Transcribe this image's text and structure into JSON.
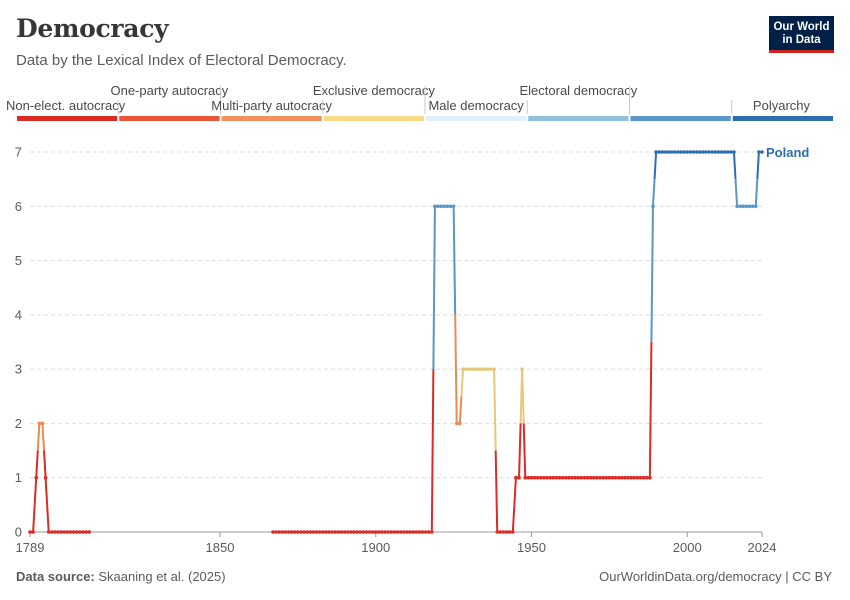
{
  "title": "Democracy",
  "subtitle": "Data by the Lexical Index of Electoral Democracy.",
  "logo": {
    "line1": "Our World",
    "line2": "in Data"
  },
  "footer": {
    "source_label": "Data source:",
    "source_text": "Skaaning et al. (2025)",
    "url": "OurWorldinData.org/democracy | CC BY"
  },
  "chart_data": {
    "type": "line",
    "title": "Democracy",
    "subtitle": "Data by the Lexical Index of Electoral Democracy.",
    "ylim": [
      0,
      7
    ],
    "xlim": [
      1789,
      2024
    ],
    "y_ticks": [
      0,
      1,
      2,
      3,
      4,
      5,
      6,
      7
    ],
    "x_ticks": [
      1789,
      1850,
      1900,
      1950,
      2000,
      2024
    ],
    "grid": true,
    "legend": {
      "placement": "top",
      "type": "color-scale",
      "categories": [
        {
          "label": "Non-elect. autocracy",
          "color": "#dc2a24"
        },
        {
          "label": "One-party autocracy",
          "color": "#ea5538"
        },
        {
          "label": "Multi-party autocracy",
          "color": "#f2915c"
        },
        {
          "label": "Exclusive democracy",
          "color": "#f8da87"
        },
        {
          "label": "Male democracy",
          "color": "#dff0fa"
        },
        {
          "label": "Electoral democracy",
          "color": "#8fc1db"
        },
        {
          "label": "Polyarchy",
          "color": "#5897c9"
        },
        {
          "label": "",
          "color": "#2e6eaf"
        }
      ]
    },
    "series": [
      {
        "name": "Poland",
        "points": [
          [
            1789,
            0
          ],
          [
            1790,
            0
          ],
          [
            1791,
            1
          ],
          [
            1792,
            2
          ],
          [
            1793,
            2
          ],
          [
            1794,
            1
          ],
          [
            1795,
            0
          ],
          [
            1796,
            0
          ],
          [
            1797,
            0
          ],
          [
            1798,
            0
          ],
          [
            1799,
            0
          ],
          [
            1800,
            0
          ],
          [
            1801,
            0
          ],
          [
            1802,
            0
          ],
          [
            1803,
            0
          ],
          [
            1804,
            0
          ],
          [
            1805,
            0
          ],
          [
            1806,
            0
          ],
          [
            1807,
            0
          ],
          [
            1808,
            0
          ],
          [
            1867,
            0
          ],
          [
            1868,
            0
          ],
          [
            1869,
            0
          ],
          [
            1870,
            0
          ],
          [
            1871,
            0
          ],
          [
            1872,
            0
          ],
          [
            1873,
            0
          ],
          [
            1874,
            0
          ],
          [
            1875,
            0
          ],
          [
            1876,
            0
          ],
          [
            1877,
            0
          ],
          [
            1878,
            0
          ],
          [
            1879,
            0
          ],
          [
            1880,
            0
          ],
          [
            1881,
            0
          ],
          [
            1882,
            0
          ],
          [
            1883,
            0
          ],
          [
            1884,
            0
          ],
          [
            1885,
            0
          ],
          [
            1886,
            0
          ],
          [
            1887,
            0
          ],
          [
            1888,
            0
          ],
          [
            1889,
            0
          ],
          [
            1890,
            0
          ],
          [
            1891,
            0
          ],
          [
            1892,
            0
          ],
          [
            1893,
            0
          ],
          [
            1894,
            0
          ],
          [
            1895,
            0
          ],
          [
            1896,
            0
          ],
          [
            1897,
            0
          ],
          [
            1898,
            0
          ],
          [
            1899,
            0
          ],
          [
            1900,
            0
          ],
          [
            1901,
            0
          ],
          [
            1902,
            0
          ],
          [
            1903,
            0
          ],
          [
            1904,
            0
          ],
          [
            1905,
            0
          ],
          [
            1906,
            0
          ],
          [
            1907,
            0
          ],
          [
            1908,
            0
          ],
          [
            1909,
            0
          ],
          [
            1910,
            0
          ],
          [
            1911,
            0
          ],
          [
            1912,
            0
          ],
          [
            1913,
            0
          ],
          [
            1914,
            0
          ],
          [
            1915,
            0
          ],
          [
            1916,
            0
          ],
          [
            1917,
            0
          ],
          [
            1918,
            0
          ],
          [
            1919,
            6
          ],
          [
            1920,
            6
          ],
          [
            1921,
            6
          ],
          [
            1922,
            6
          ],
          [
            1923,
            6
          ],
          [
            1924,
            6
          ],
          [
            1925,
            6
          ],
          [
            1926,
            2
          ],
          [
            1927,
            2
          ],
          [
            1928,
            3
          ],
          [
            1929,
            3
          ],
          [
            1930,
            3
          ],
          [
            1931,
            3
          ],
          [
            1932,
            3
          ],
          [
            1933,
            3
          ],
          [
            1934,
            3
          ],
          [
            1935,
            3
          ],
          [
            1936,
            3
          ],
          [
            1937,
            3
          ],
          [
            1938,
            3
          ],
          [
            1939,
            0
          ],
          [
            1940,
            0
          ],
          [
            1941,
            0
          ],
          [
            1942,
            0
          ],
          [
            1943,
            0
          ],
          [
            1944,
            0
          ],
          [
            1945,
            1
          ],
          [
            1946,
            1
          ],
          [
            1947,
            3
          ],
          [
            1948,
            1
          ],
          [
            1949,
            1
          ],
          [
            1950,
            1
          ],
          [
            1951,
            1
          ],
          [
            1952,
            1
          ],
          [
            1953,
            1
          ],
          [
            1954,
            1
          ],
          [
            1955,
            1
          ],
          [
            1956,
            1
          ],
          [
            1957,
            1
          ],
          [
            1958,
            1
          ],
          [
            1959,
            1
          ],
          [
            1960,
            1
          ],
          [
            1961,
            1
          ],
          [
            1962,
            1
          ],
          [
            1963,
            1
          ],
          [
            1964,
            1
          ],
          [
            1965,
            1
          ],
          [
            1966,
            1
          ],
          [
            1967,
            1
          ],
          [
            1968,
            1
          ],
          [
            1969,
            1
          ],
          [
            1970,
            1
          ],
          [
            1971,
            1
          ],
          [
            1972,
            1
          ],
          [
            1973,
            1
          ],
          [
            1974,
            1
          ],
          [
            1975,
            1
          ],
          [
            1976,
            1
          ],
          [
            1977,
            1
          ],
          [
            1978,
            1
          ],
          [
            1979,
            1
          ],
          [
            1980,
            1
          ],
          [
            1981,
            1
          ],
          [
            1982,
            1
          ],
          [
            1983,
            1
          ],
          [
            1984,
            1
          ],
          [
            1985,
            1
          ],
          [
            1986,
            1
          ],
          [
            1987,
            1
          ],
          [
            1988,
            1
          ],
          [
            1989,
            6
          ],
          [
            1990,
            7
          ],
          [
            1991,
            7
          ],
          [
            1992,
            7
          ],
          [
            1993,
            7
          ],
          [
            1994,
            7
          ],
          [
            1995,
            7
          ],
          [
            1996,
            7
          ],
          [
            1997,
            7
          ],
          [
            1998,
            7
          ],
          [
            1999,
            7
          ],
          [
            2000,
            7
          ],
          [
            2001,
            7
          ],
          [
            2002,
            7
          ],
          [
            2003,
            7
          ],
          [
            2004,
            7
          ],
          [
            2005,
            7
          ],
          [
            2006,
            7
          ],
          [
            2007,
            7
          ],
          [
            2008,
            7
          ],
          [
            2009,
            7
          ],
          [
            2010,
            7
          ],
          [
            2011,
            7
          ],
          [
            2012,
            7
          ],
          [
            2013,
            7
          ],
          [
            2014,
            7
          ],
          [
            2015,
            7
          ],
          [
            2016,
            6
          ],
          [
            2017,
            6
          ],
          [
            2018,
            6
          ],
          [
            2019,
            6
          ],
          [
            2020,
            6
          ],
          [
            2021,
            6
          ],
          [
            2022,
            6
          ],
          [
            2023,
            7
          ],
          [
            2024,
            7
          ]
        ]
      }
    ]
  }
}
